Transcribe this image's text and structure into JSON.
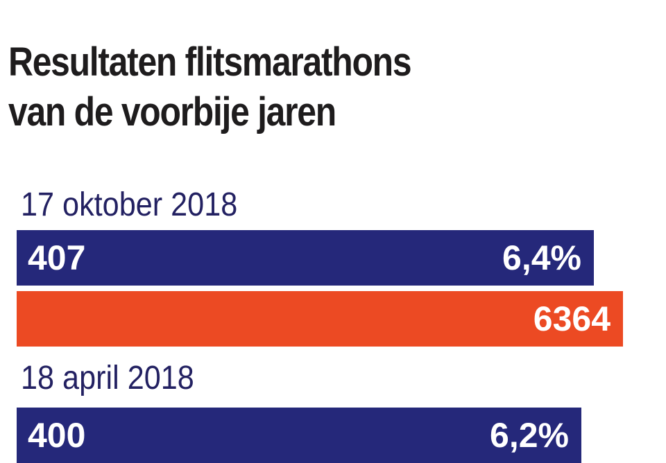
{
  "colors": {
    "title": "#1e1c1d",
    "date": "#232162",
    "caught_bar": "#25287a",
    "total_bar": "#ec4a23",
    "bar_text": "#ffffff"
  },
  "chart_data": {
    "type": "bar",
    "orientation": "horizontal",
    "title_lines": [
      "Resultaten flitsmarathons",
      "van de voorbije jaren"
    ],
    "groups": [
      {
        "date": "17 oktober 2018",
        "caught": 407,
        "caught_label": "407",
        "percentage_label": "6,4%",
        "total": 6364,
        "total_label": "6364"
      },
      {
        "date": "18 april 2018",
        "caught": 400,
        "caught_label": "400",
        "percentage_label": "6,2%"
      }
    ]
  }
}
